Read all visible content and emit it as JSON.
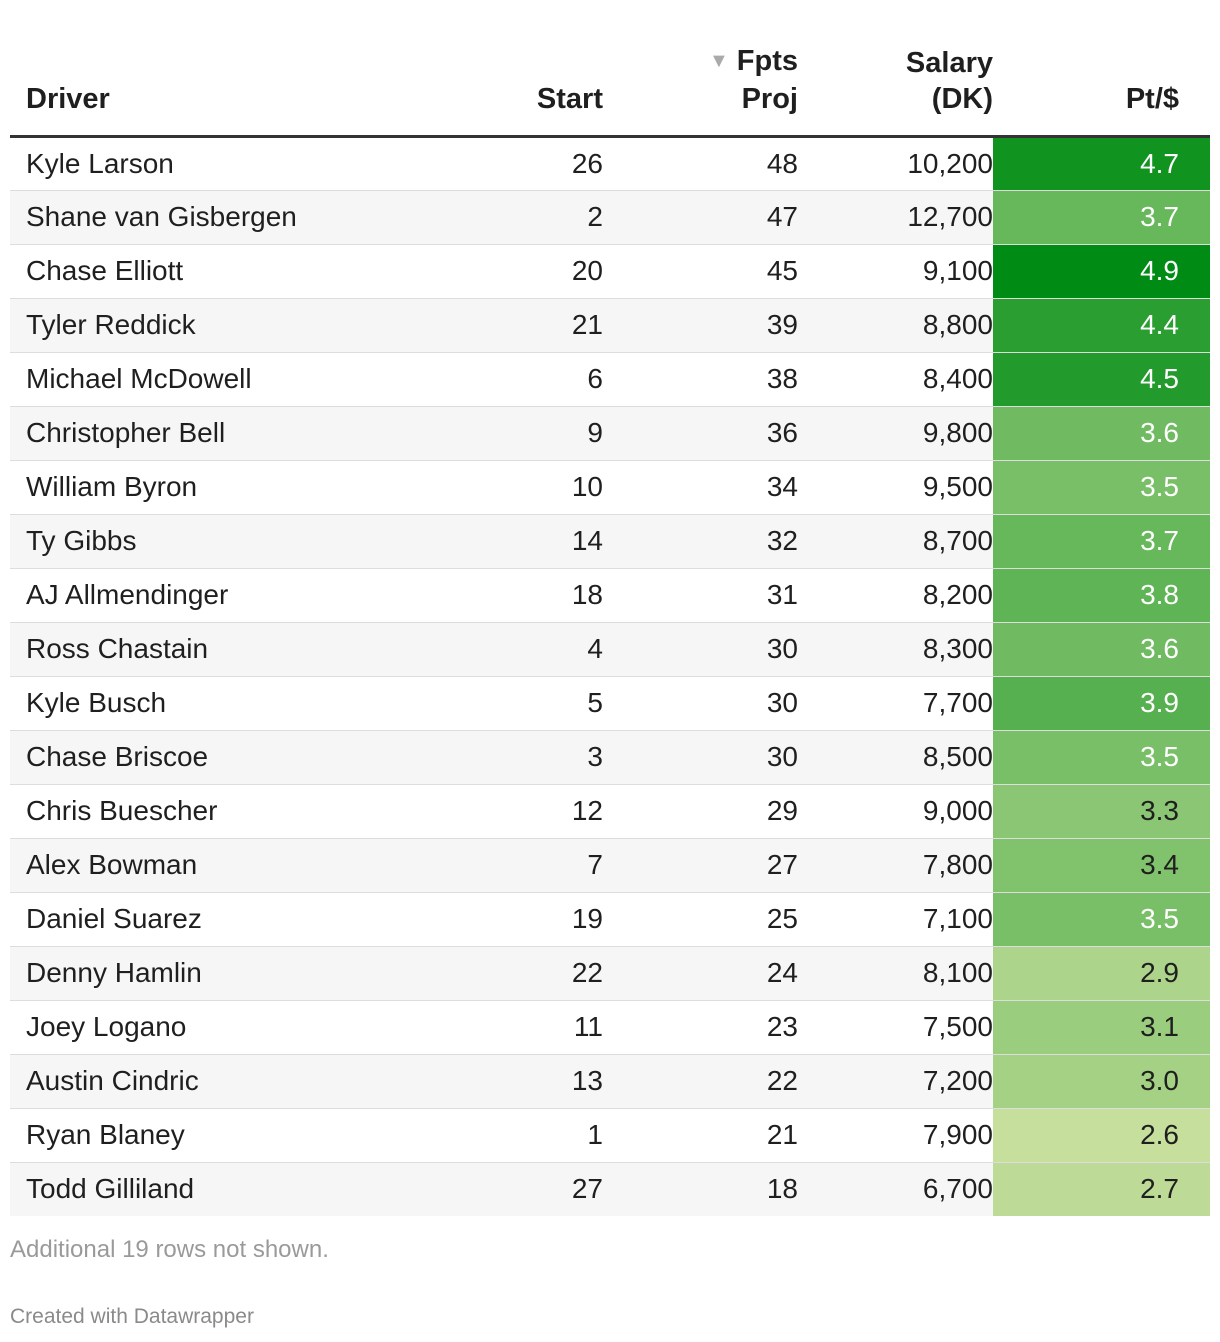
{
  "colors": {
    "header_rule": "#333333",
    "row_alt": "#f6f6f6",
    "scale_low": "#c6df9c",
    "scale_high": "#008c14"
  },
  "chart_data": {
    "type": "table",
    "columns": [
      "Driver",
      "Start",
      "Fpts Proj",
      "Salary (DK)",
      "Pt/$"
    ],
    "header_lines": {
      "driver": [
        "Driver"
      ],
      "start": [
        "Start"
      ],
      "fpts": [
        "Fpts",
        "Proj"
      ],
      "salary": [
        "Salary",
        "(DK)"
      ],
      "pt": [
        "Pt/$"
      ]
    },
    "sorted_by": "Fpts Proj",
    "sort_direction": "descending",
    "rows": [
      {
        "driver": "Kyle Larson",
        "start": "26",
        "fpts": "48",
        "salary": "10,200",
        "pt": "4.7"
      },
      {
        "driver": "Shane van Gisbergen",
        "start": "2",
        "fpts": "47",
        "salary": "12,700",
        "pt": "3.7"
      },
      {
        "driver": "Chase Elliott",
        "start": "20",
        "fpts": "45",
        "salary": "9,100",
        "pt": "4.9"
      },
      {
        "driver": "Tyler Reddick",
        "start": "21",
        "fpts": "39",
        "salary": "8,800",
        "pt": "4.4"
      },
      {
        "driver": "Michael McDowell",
        "start": "6",
        "fpts": "38",
        "salary": "8,400",
        "pt": "4.5"
      },
      {
        "driver": "Christopher Bell",
        "start": "9",
        "fpts": "36",
        "salary": "9,800",
        "pt": "3.6"
      },
      {
        "driver": "William Byron",
        "start": "10",
        "fpts": "34",
        "salary": "9,500",
        "pt": "3.5"
      },
      {
        "driver": "Ty Gibbs",
        "start": "14",
        "fpts": "32",
        "salary": "8,700",
        "pt": "3.7"
      },
      {
        "driver": "AJ Allmendinger",
        "start": "18",
        "fpts": "31",
        "salary": "8,200",
        "pt": "3.8"
      },
      {
        "driver": "Ross Chastain",
        "start": "4",
        "fpts": "30",
        "salary": "8,300",
        "pt": "3.6"
      },
      {
        "driver": "Kyle Busch",
        "start": "5",
        "fpts": "30",
        "salary": "7,700",
        "pt": "3.9"
      },
      {
        "driver": "Chase Briscoe",
        "start": "3",
        "fpts": "30",
        "salary": "8,500",
        "pt": "3.5"
      },
      {
        "driver": "Chris Buescher",
        "start": "12",
        "fpts": "29",
        "salary": "9,000",
        "pt": "3.3"
      },
      {
        "driver": "Alex Bowman",
        "start": "7",
        "fpts": "27",
        "salary": "7,800",
        "pt": "3.4"
      },
      {
        "driver": "Daniel Suarez",
        "start": "19",
        "fpts": "25",
        "salary": "7,100",
        "pt": "3.5"
      },
      {
        "driver": "Denny Hamlin",
        "start": "22",
        "fpts": "24",
        "salary": "8,100",
        "pt": "2.9"
      },
      {
        "driver": "Joey Logano",
        "start": "11",
        "fpts": "23",
        "salary": "7,500",
        "pt": "3.1"
      },
      {
        "driver": "Austin Cindric",
        "start": "13",
        "fpts": "22",
        "salary": "7,200",
        "pt": "3.0"
      },
      {
        "driver": "Ryan Blaney",
        "start": "1",
        "fpts": "21",
        "salary": "7,900",
        "pt": "2.6"
      },
      {
        "driver": "Todd Gilliland",
        "start": "27",
        "fpts": "18",
        "salary": "6,700",
        "pt": "2.7"
      }
    ]
  },
  "footer": {
    "note": "Additional 19 rows not shown.",
    "credit": "Created with Datawrapper"
  }
}
